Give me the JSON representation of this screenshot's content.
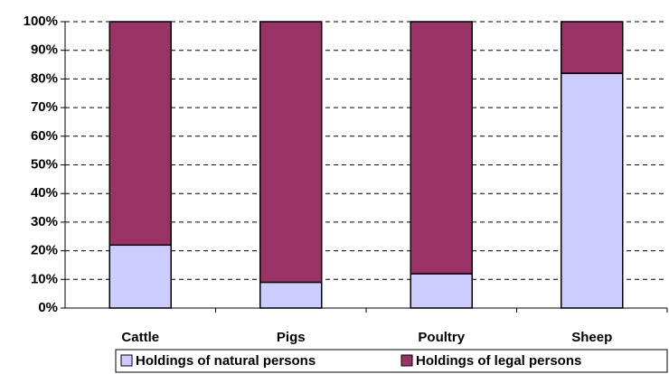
{
  "chart_data": {
    "type": "stacked_bar",
    "categories": [
      "Cattle",
      "Pigs",
      "Poultry",
      "Sheep"
    ],
    "series": [
      {
        "name": "Holdings of natural persons",
        "color": "#ccccff",
        "values": [
          22,
          9,
          12,
          82
        ]
      },
      {
        "name": "Holdings of legal persons",
        "color": "#993366",
        "values": [
          78,
          91,
          88,
          18
        ]
      }
    ],
    "ylim": [
      0,
      100
    ],
    "yticks": [
      {
        "value": 0,
        "label": "0%"
      },
      {
        "value": 10,
        "label": "10%"
      },
      {
        "value": 20,
        "label": "20%"
      },
      {
        "value": 30,
        "label": "30%"
      },
      {
        "value": 40,
        "label": "40%"
      },
      {
        "value": 50,
        "label": "50%"
      },
      {
        "value": 60,
        "label": "60%"
      },
      {
        "value": 70,
        "label": "70%"
      },
      {
        "value": 80,
        "label": "80%"
      },
      {
        "value": 90,
        "label": "90%"
      },
      {
        "value": 100,
        "label": "100%"
      }
    ],
    "grid": true,
    "legend": "bottom"
  }
}
